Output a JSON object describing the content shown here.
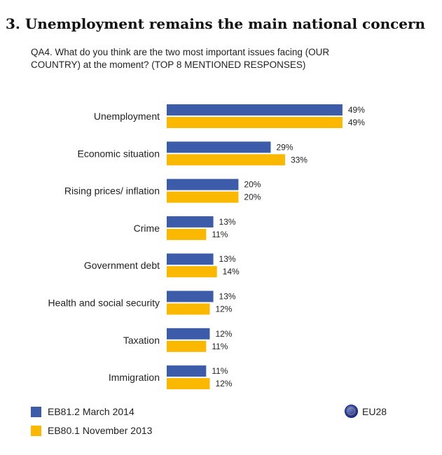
{
  "header": {
    "title": "3. Unemployment remains the main national concern",
    "subtitle": "QA4. What do you think are the two most important issues facing (OUR COUNTRY) at the moment? (TOP 8 MENTIONED RESPONSES)"
  },
  "legend": {
    "series1": "EB81.2 March 2014",
    "series2": "EB80.1 November 2013",
    "region": "EU28",
    "region_icon": "eu-flag-icon"
  },
  "colors": {
    "series1": "#3c5ba9",
    "series2": "#fbb800"
  },
  "chart_data": {
    "type": "bar",
    "orientation": "horizontal",
    "unit": "%",
    "categories": [
      "Unemployment",
      "Economic situation",
      "Rising prices/ inflation",
      "Crime",
      "Government debt",
      "Health and social security",
      "Taxation",
      "Immigration"
    ],
    "series": [
      {
        "name": "EB81.2 March 2014",
        "color": "#3c5ba9",
        "values": [
          49,
          29,
          20,
          13,
          13,
          13,
          12,
          11
        ]
      },
      {
        "name": "EB80.1 November 2013",
        "color": "#fbb800",
        "values": [
          49,
          33,
          20,
          11,
          14,
          12,
          11,
          12
        ]
      }
    ],
    "grid": false
  }
}
